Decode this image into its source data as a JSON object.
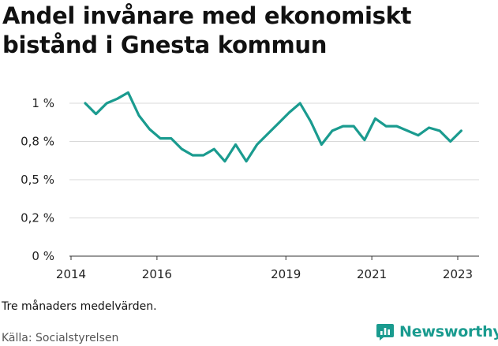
{
  "title": "Andel invånare med ekonomiskt bistånd i Gnesta kommun",
  "note": "Tre månaders medelvärden.",
  "source": "Källa: Socialstyrelsen",
  "brand": {
    "name": "Newsworthy",
    "icon": "bar-chart-icon",
    "color": "#1a9b8f"
  },
  "chart_data": {
    "type": "line",
    "title": "Andel invånare med ekonomiskt bistånd i Gnesta kommun",
    "xlabel": "",
    "ylabel": "",
    "x_ticks": [
      2014,
      2016,
      2019,
      2021,
      2023
    ],
    "x_range": [
      2014.0,
      2023.4
    ],
    "y_ticks": [
      {
        "value": 0,
        "label": "0 %"
      },
      {
        "value": 0.25,
        "label": "0,2 %"
      },
      {
        "value": 0.5,
        "label": "0,5 %"
      },
      {
        "value": 0.75,
        "label": "0,8 %"
      },
      {
        "value": 1.0,
        "label": "1 %"
      }
    ],
    "ylim": [
      0,
      1.0
    ],
    "grid": true,
    "line_color": "#1a9b8f",
    "series": [
      {
        "x": [
          2014.33,
          2014.58,
          2014.83,
          2015.08,
          2015.33,
          2015.58,
          2015.83,
          2016.08,
          2016.33,
          2016.58,
          2016.83,
          2017.08,
          2017.33,
          2017.58,
          2017.83,
          2018.08,
          2018.33,
          2018.58,
          2018.83,
          2019.08,
          2019.33,
          2019.58,
          2019.83,
          2020.08,
          2020.33,
          2020.58,
          2020.83,
          2021.08,
          2021.33,
          2021.58,
          2021.83,
          2022.08,
          2022.33,
          2022.58,
          2022.83,
          2023.08
        ],
        "y": [
          1.0,
          0.93,
          1.0,
          1.03,
          1.07,
          0.92,
          0.83,
          0.77,
          0.77,
          0.7,
          0.66,
          0.66,
          0.7,
          0.62,
          0.73,
          0.62,
          0.73,
          0.8,
          0.87,
          0.94,
          1.0,
          0.88,
          0.73,
          0.82,
          0.85,
          0.85,
          0.76,
          0.9,
          0.85,
          0.85,
          0.82,
          0.79,
          0.84,
          0.82,
          0.75,
          0.82
        ]
      }
    ]
  }
}
